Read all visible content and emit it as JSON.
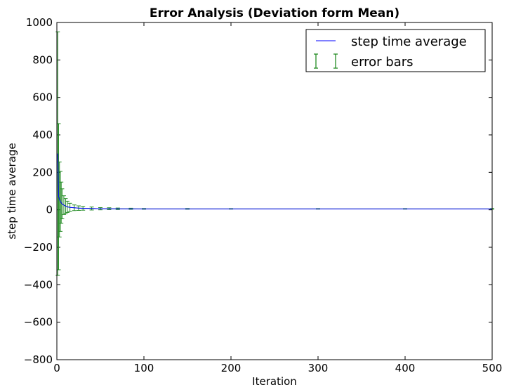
{
  "chart_data": {
    "type": "line",
    "title": "Error Analysis (Deviation form Mean)",
    "xlabel": "Iteration",
    "ylabel": "step time average",
    "xlim": [
      0,
      500
    ],
    "ylim": [
      -800,
      1000
    ],
    "x_ticks": [
      0,
      100,
      200,
      300,
      400,
      500
    ],
    "y_ticks": [
      -800,
      -600,
      -400,
      -200,
      0,
      200,
      400,
      600,
      800,
      1000
    ],
    "x_tick_labels": [
      "0",
      "100",
      "200",
      "300",
      "400",
      "500"
    ],
    "y_tick_labels": [
      "−800",
      "−600",
      "−400",
      "−200",
      "0",
      "200",
      "400",
      "600",
      "800",
      "1000"
    ],
    "grid": false,
    "legend_position": "top-right",
    "series": [
      {
        "name": "step time average",
        "kind": "line",
        "color": "#0000ff",
        "x": [
          1,
          2,
          3,
          4,
          5,
          6,
          8,
          10,
          12,
          15,
          20,
          25,
          30,
          40,
          50,
          70,
          100,
          150,
          200,
          300,
          400,
          500
        ],
        "y": [
          300,
          70,
          55,
          45,
          38,
          32,
          25,
          20,
          16,
          13,
          11,
          9,
          8,
          7,
          6,
          5.5,
          5,
          5,
          5,
          5,
          5,
          5
        ]
      },
      {
        "name": "error bars",
        "kind": "errorbar",
        "color": "#228b22",
        "x": [
          1,
          2,
          3,
          4,
          5,
          6,
          8,
          10,
          12,
          15,
          20,
          25,
          30,
          40,
          50,
          60,
          70,
          85,
          100,
          150,
          200,
          300,
          400,
          500
        ],
        "y": [
          300,
          70,
          55,
          45,
          38,
          32,
          25,
          20,
          16,
          13,
          11,
          9,
          8,
          7,
          6,
          6,
          5.5,
          5.5,
          5,
          5,
          5,
          5,
          5,
          5
        ],
        "err": [
          650,
          390,
          200,
          160,
          110,
          80,
          50,
          40,
          30,
          22,
          15,
          12,
          10,
          8,
          6,
          5,
          4,
          3,
          2,
          2,
          1.5,
          1.5,
          1.5,
          1.5
        ]
      }
    ],
    "legend": [
      {
        "label": "step time average",
        "marker": "line",
        "color": "#0000ff"
      },
      {
        "label": "error bars",
        "marker": "errorbar",
        "color": "#228b22"
      }
    ]
  }
}
